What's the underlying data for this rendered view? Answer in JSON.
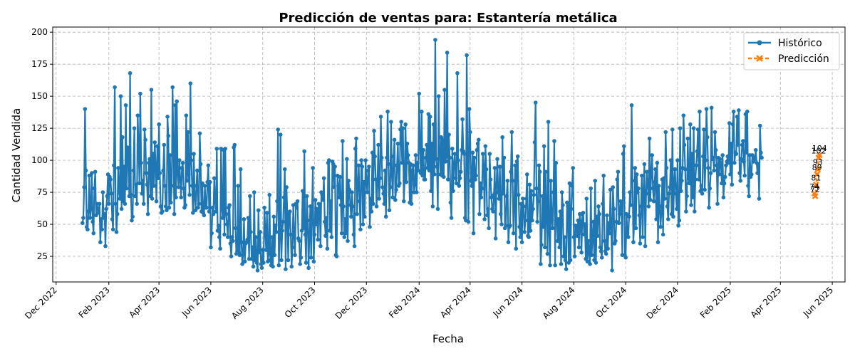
{
  "chart_data": {
    "type": "line",
    "title": "Predicción de ventas para: Estantería metálica",
    "xlabel": "Fecha",
    "ylabel": "Cantidad Vendida",
    "grid": true,
    "legend_placement": "top-right",
    "x_range": [
      "2022-11-27",
      "2025-06-16"
    ],
    "ylim": [
      5,
      204
    ],
    "y_ticks": [
      25,
      50,
      75,
      100,
      125,
      150,
      175,
      200
    ],
    "x_ticks": [
      {
        "date": "2022-12-01",
        "label": "Dec 2022"
      },
      {
        "date": "2023-02-01",
        "label": "Feb 2023"
      },
      {
        "date": "2023-04-01",
        "label": "Apr 2023"
      },
      {
        "date": "2023-06-01",
        "label": "Jun 2023"
      },
      {
        "date": "2023-08-01",
        "label": "Aug 2023"
      },
      {
        "date": "2023-10-01",
        "label": "Oct 2023"
      },
      {
        "date": "2023-12-01",
        "label": "Dec 2023"
      },
      {
        "date": "2024-02-01",
        "label": "Feb 2024"
      },
      {
        "date": "2024-04-01",
        "label": "Apr 2024"
      },
      {
        "date": "2024-06-01",
        "label": "Jun 2024"
      },
      {
        "date": "2024-08-01",
        "label": "Aug 2024"
      },
      {
        "date": "2024-10-01",
        "label": "Oct 2024"
      },
      {
        "date": "2024-12-01",
        "label": "Dec 2024"
      },
      {
        "date": "2025-02-01",
        "label": "Feb 2025"
      },
      {
        "date": "2025-04-01",
        "label": "Apr 2025"
      },
      {
        "date": "2025-06-01",
        "label": "Jun 2025"
      }
    ],
    "series": [
      {
        "name": "Histórico",
        "color": "#1f77b4",
        "marker": "circle",
        "start_date": "2023-01-01",
        "step_days": 1,
        "values": [
          51,
          55,
          79,
          140,
          92,
          48,
          46,
          60,
          88,
          55,
          62,
          90,
          52,
          43,
          78,
          91,
          57,
          66,
          62,
          59,
          66,
          36,
          54,
          46,
          75,
          55,
          58,
          33,
          62,
          72,
          89,
          66,
          87,
          85,
          74,
          54,
          46,
          96,
          157,
          66,
          44,
          58,
          94,
          76,
          70,
          150,
          62,
          118,
          68,
          95,
          66,
          143,
          78,
          110,
          109,
          72,
          168,
          73,
          53,
          56,
          92,
          125,
          72,
          81,
          66,
          135,
          112,
          82,
          152,
          98,
          74,
          84,
          66,
          124,
          116,
          90,
          81,
          58,
          98,
          101,
          72,
          155,
          70,
          105,
          80,
          114,
          96,
          68,
          111,
          86,
          128,
          90,
          64,
          59,
          60,
          92,
          112,
          80,
          64,
          61,
          134,
          119,
          63,
          104,
          67,
          80,
          157,
          112,
          58,
          143,
          71,
          146,
          89,
          79,
          100,
          85,
          71,
          94,
          98,
          78,
          63,
          65,
          135,
          84,
          122,
          89,
          73,
          160,
          100,
          80,
          59,
          105,
          70,
          61,
          80,
          92,
          63,
          66,
          121,
          97,
          60,
          82,
          59,
          57,
          80,
          63,
          63,
          83,
          96,
          60,
          83,
          32,
          43,
          63,
          58,
          86,
          67,
          60,
          109,
          45,
          49,
          40,
          31,
          109,
          63,
          55,
          108,
          42,
          109,
          58,
          50,
          40,
          63,
          65,
          35,
          25,
          40,
          37,
          110,
          112,
          47,
          27,
          29,
          80,
          28,
          26,
          93,
          36,
          19,
          27,
          54,
          21,
          35,
          36,
          38,
          55,
          23,
          72,
          44,
          23,
          32,
          17,
          75,
          22,
          40,
          20,
          14,
          61,
          28,
          44,
          19,
          16,
          30,
          20,
          63,
          46,
          30,
          59,
          21,
          27,
          73,
          22,
          18,
          40,
          17,
          56,
          26,
          49,
          44,
          68,
          124,
          18,
          39,
          120,
          22,
          45,
          52,
          71,
          93,
          15,
          79,
          58,
          22,
          58,
          60,
          42,
          17,
          32,
          65,
          40,
          26,
          66,
          63,
          68,
          39,
          37,
          19,
          24,
          45,
          76,
          47,
          107,
          42,
          20,
          72,
          53,
          16,
          43,
          64,
          24,
          60,
          94,
          21,
          42,
          69,
          50,
          62,
          38,
          66,
          65,
          33,
          75,
          73,
          69,
          86,
          52,
          41,
          55,
          31,
          98,
          100,
          45,
          68,
          40,
          99,
          97,
          79,
          95,
          26,
          25,
          88,
          80,
          71,
          87,
          65,
          43,
          115,
          64,
          40,
          54,
          43,
          101,
          37,
          84,
          77,
          65,
          56,
          75,
          64,
          42,
          33,
          109,
          117,
          58,
          78,
          96,
          68,
          46,
          100,
          95,
          50,
          83,
          56,
          100,
          84,
          75,
          92,
          95,
          48,
          70,
          60,
          106,
          66,
          123,
          103,
          85,
          64,
          82,
          112,
          70,
          86,
          134,
          102,
          79,
          74,
          66,
          92,
          56,
          102,
          138,
          97,
          61,
          79,
          130,
          88,
          71,
          103,
          116,
          69,
          77,
          96,
          113,
          80,
          82,
          124,
          130,
          98,
          125,
          68,
          84,
          128,
          83,
          113,
          104,
          98,
          67,
          97,
          66,
          92,
          96,
          75,
          81,
          104,
          75,
          98,
          92,
          152,
          111,
          90,
          138,
          88,
          108,
          85,
          85,
          102,
          112,
          94,
          136,
          92,
          134,
          76,
          113,
          64,
          128,
          89,
          194,
          101,
          95,
          62,
          150,
          107,
          89,
          118,
          88,
          116,
          87,
          155,
          99,
          103,
          184,
          85,
          120,
          102,
          67,
          55,
          109,
          76,
          98,
          105,
          86,
          82,
          168,
          100,
          80,
          86,
          91,
          108,
          132,
          107,
          105,
          55,
          53,
          182,
          98,
          52,
          140,
          122,
          84,
          80,
          106,
          43,
          102,
          85,
          88,
          108,
          113,
          116,
          58,
          82,
          71,
          78,
          105,
          96,
          54,
          111,
          93,
          57,
          62,
          47,
          105,
          85,
          71,
          62,
          60,
          73,
          94,
          39,
          80,
          101,
          75,
          70,
          95,
          58,
          50,
          118,
          74,
          102,
          47,
          49,
          72,
          84,
          36,
          48,
          49,
          91,
          122,
          84,
          43,
          66,
          96,
          31,
          99,
          103,
          73,
          48,
          40,
          66,
          36,
          70,
          64,
          44,
          53,
          70,
          89,
          41,
          40,
          81,
          45,
          76,
          53,
          62,
          73,
          114,
          145,
          78,
          52,
          68,
          96,
          91,
          19,
          34,
          72,
          48,
          111,
          32,
          91,
          57,
          27,
          130,
          43,
          18,
          84,
          53,
          47,
          75,
          115,
          18,
          98,
          53,
          37,
          54,
          32,
          60,
          19,
          75,
          65,
          25,
          40,
          22,
          15,
          67,
          64,
          20,
          82,
          22,
          62,
          80,
          94,
          40,
          25,
          49,
          48,
          41,
          53,
          32,
          58,
          52,
          28,
          58,
          59,
          42,
          50,
          23,
          70,
          21,
          37,
          28,
          19,
          78,
          26,
          40,
          52,
          22,
          84,
          20,
          56,
          41,
          64,
          58,
          32,
          29,
          24,
          66,
          88,
          37,
          29,
          27,
          57,
          31,
          51,
          43,
          77,
          47,
          14,
          79,
          62,
          35,
          37,
          52,
          85,
          91,
          51,
          58,
          68,
          65,
          26,
          105,
          111,
          26,
          24,
          58,
          43,
          40,
          56,
          75,
          65,
          143,
          84,
          36,
          51,
          94,
          47,
          89,
          75,
          78,
          57,
          35,
          64,
          88,
          40,
          77,
          97,
          33,
          74,
          91,
          80,
          64,
          117,
          69,
          90,
          104,
          78,
          68,
          83,
          93,
          54,
          98,
          36,
          80,
          64,
          48,
          60,
          85,
          42,
          86,
          70,
          122,
          94,
          64,
          54,
          74,
          79,
          100,
          58,
          124,
          56,
          82,
          93,
          74,
          62,
          100,
          49,
          53,
          125,
          76,
          84,
          94,
          135,
          112,
          93,
          60,
          72,
          117,
          86,
          82,
          128,
          65,
          105,
          71,
          125,
          60,
          85,
          96,
          107,
          124,
          85,
          138,
          76,
          80,
          74,
          103,
          124,
          77,
          100,
          140,
          118,
          94,
          63,
          78,
          90,
          141,
          101,
          102,
          92,
          122,
          108,
          96,
          66,
          102,
          89,
          101,
          98,
          82,
          104,
          71,
          82,
          87,
          96,
          99,
          103,
          98,
          129,
          89,
          113,
          81,
          128,
          138,
          98,
          106,
          105,
          134,
          112,
          139,
          90,
          84,
          101,
          112,
          115,
          99,
          88,
          136,
          106,
          138,
          80,
          72,
          104,
          87,
          89,
          104,
          99,
          102,
          101,
          108,
          98,
          90,
          97,
          70,
          127,
          106,
          102
        ]
      },
      {
        "name": "Predicción",
        "color": "#ff7f0e",
        "marker": "x",
        "start_date": "2025-05-11",
        "step_days": 1,
        "values": [
          74,
          72,
          81,
          89,
          93,
          102,
          104
        ]
      }
    ],
    "data_labels": [
      104,
      102,
      93,
      89,
      81,
      74,
      72
    ]
  }
}
